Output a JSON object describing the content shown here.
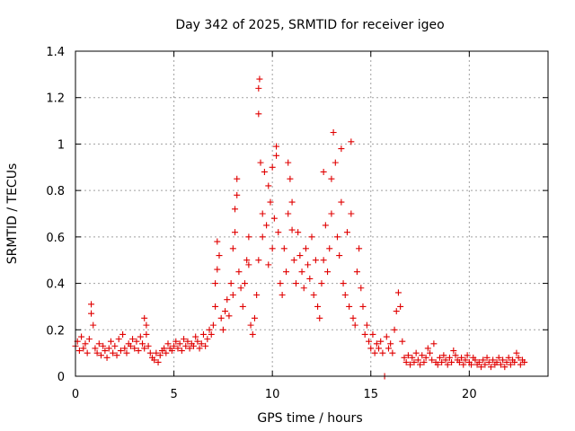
{
  "chart_data": {
    "type": "scatter",
    "title": "Day 342 of 2025, SRMTID for receiver igeo",
    "xlabel": "GPS time / hours",
    "ylabel": "SRMTID / TECUs",
    "xlim": [
      0,
      24
    ],
    "ylim": [
      0,
      1.4
    ],
    "x_ticks": [
      0,
      5,
      10,
      15,
      20
    ],
    "x_tick_labels": [
      "0",
      "5",
      "10",
      "15",
      "20"
    ],
    "y_ticks": [
      0,
      0.2,
      0.4,
      0.6,
      0.8,
      1.0,
      1.2,
      1.4
    ],
    "y_tick_labels": [
      "0",
      "0.2",
      "0.4",
      "0.6",
      "0.8",
      "1",
      "1.2",
      "1.4"
    ],
    "grid": true,
    "marker": "+",
    "color": "#e00000",
    "series": [
      {
        "name": "SRMTID",
        "points": [
          [
            0.0,
            0.13
          ],
          [
            0.1,
            0.15
          ],
          [
            0.2,
            0.11
          ],
          [
            0.3,
            0.17
          ],
          [
            0.4,
            0.12
          ],
          [
            0.5,
            0.14
          ],
          [
            0.6,
            0.1
          ],
          [
            0.7,
            0.16
          ],
          [
            0.8,
            0.31
          ],
          [
            0.8,
            0.27
          ],
          [
            0.9,
            0.22
          ],
          [
            1.0,
            0.12
          ],
          [
            1.1,
            0.1
          ],
          [
            1.2,
            0.14
          ],
          [
            1.3,
            0.09
          ],
          [
            1.4,
            0.13
          ],
          [
            1.5,
            0.11
          ],
          [
            1.6,
            0.08
          ],
          [
            1.7,
            0.12
          ],
          [
            1.8,
            0.15
          ],
          [
            1.9,
            0.1
          ],
          [
            2.0,
            0.13
          ],
          [
            2.1,
            0.09
          ],
          [
            2.2,
            0.16
          ],
          [
            2.3,
            0.11
          ],
          [
            2.4,
            0.18
          ],
          [
            2.5,
            0.12
          ],
          [
            2.6,
            0.1
          ],
          [
            2.7,
            0.14
          ],
          [
            2.8,
            0.13
          ],
          [
            2.9,
            0.16
          ],
          [
            3.0,
            0.12
          ],
          [
            3.1,
            0.15
          ],
          [
            3.2,
            0.11
          ],
          [
            3.3,
            0.17
          ],
          [
            3.4,
            0.14
          ],
          [
            3.5,
            0.12
          ],
          [
            3.6,
            0.18
          ],
          [
            3.7,
            0.13
          ],
          [
            3.5,
            0.25
          ],
          [
            3.6,
            0.22
          ],
          [
            3.8,
            0.1
          ],
          [
            3.9,
            0.08
          ],
          [
            4.0,
            0.07
          ],
          [
            4.1,
            0.1
          ],
          [
            4.2,
            0.06
          ],
          [
            4.3,
            0.09
          ],
          [
            4.4,
            0.11
          ],
          [
            4.5,
            0.12
          ],
          [
            4.6,
            0.1
          ],
          [
            4.7,
            0.14
          ],
          [
            4.8,
            0.12
          ],
          [
            4.9,
            0.11
          ],
          [
            5.0,
            0.13
          ],
          [
            5.1,
            0.15
          ],
          [
            5.2,
            0.12
          ],
          [
            5.3,
            0.14
          ],
          [
            5.4,
            0.11
          ],
          [
            5.5,
            0.16
          ],
          [
            5.6,
            0.13
          ],
          [
            5.7,
            0.15
          ],
          [
            5.8,
            0.12
          ],
          [
            5.9,
            0.14
          ],
          [
            6.0,
            0.13
          ],
          [
            6.1,
            0.17
          ],
          [
            6.2,
            0.15
          ],
          [
            6.3,
            0.12
          ],
          [
            6.4,
            0.14
          ],
          [
            6.5,
            0.18
          ],
          [
            6.6,
            0.13
          ],
          [
            6.7,
            0.16
          ],
          [
            6.8,
            0.2
          ],
          [
            6.9,
            0.18
          ],
          [
            7.0,
            0.22
          ],
          [
            7.1,
            0.3
          ],
          [
            7.1,
            0.4
          ],
          [
            7.2,
            0.46
          ],
          [
            7.2,
            0.58
          ],
          [
            7.3,
            0.52
          ],
          [
            7.4,
            0.25
          ],
          [
            7.5,
            0.2
          ],
          [
            7.6,
            0.28
          ],
          [
            7.7,
            0.33
          ],
          [
            7.8,
            0.26
          ],
          [
            7.9,
            0.4
          ],
          [
            8.0,
            0.35
          ],
          [
            8.0,
            0.55
          ],
          [
            8.1,
            0.62
          ],
          [
            8.1,
            0.72
          ],
          [
            8.2,
            0.85
          ],
          [
            8.2,
            0.78
          ],
          [
            8.3,
            0.45
          ],
          [
            8.4,
            0.38
          ],
          [
            8.5,
            0.3
          ],
          [
            8.6,
            0.4
          ],
          [
            8.7,
            0.5
          ],
          [
            8.8,
            0.6
          ],
          [
            8.8,
            0.48
          ],
          [
            8.9,
            0.22
          ],
          [
            9.0,
            0.18
          ],
          [
            9.1,
            0.25
          ],
          [
            9.2,
            0.35
          ],
          [
            9.3,
            0.5
          ],
          [
            9.3,
            1.13
          ],
          [
            9.3,
            1.24
          ],
          [
            9.35,
            1.28
          ],
          [
            9.4,
            0.92
          ],
          [
            9.5,
            0.7
          ],
          [
            9.5,
            0.6
          ],
          [
            9.6,
            0.88
          ],
          [
            9.7,
            0.65
          ],
          [
            9.8,
            0.48
          ],
          [
            9.8,
            0.82
          ],
          [
            9.9,
            0.75
          ],
          [
            10.0,
            0.55
          ],
          [
            10.0,
            0.9
          ],
          [
            10.1,
            0.68
          ],
          [
            10.2,
            0.99
          ],
          [
            10.2,
            0.95
          ],
          [
            10.3,
            0.62
          ],
          [
            10.4,
            0.4
          ],
          [
            10.5,
            0.35
          ],
          [
            10.6,
            0.55
          ],
          [
            10.7,
            0.45
          ],
          [
            10.8,
            0.7
          ],
          [
            10.8,
            0.92
          ],
          [
            10.9,
            0.85
          ],
          [
            11.0,
            0.63
          ],
          [
            11.0,
            0.75
          ],
          [
            11.1,
            0.5
          ],
          [
            11.2,
            0.4
          ],
          [
            11.3,
            0.62
          ],
          [
            11.4,
            0.52
          ],
          [
            11.5,
            0.45
          ],
          [
            11.6,
            0.38
          ],
          [
            11.7,
            0.55
          ],
          [
            11.8,
            0.48
          ],
          [
            11.9,
            0.42
          ],
          [
            12.0,
            0.6
          ],
          [
            12.1,
            0.35
          ],
          [
            12.2,
            0.5
          ],
          [
            12.3,
            0.3
          ],
          [
            12.4,
            0.25
          ],
          [
            12.5,
            0.4
          ],
          [
            12.6,
            0.5
          ],
          [
            12.6,
            0.88
          ],
          [
            12.7,
            0.65
          ],
          [
            12.8,
            0.45
          ],
          [
            12.9,
            0.55
          ],
          [
            13.0,
            0.7
          ],
          [
            13.0,
            0.85
          ],
          [
            13.1,
            1.05
          ],
          [
            13.2,
            0.92
          ],
          [
            13.3,
            0.6
          ],
          [
            13.4,
            0.52
          ],
          [
            13.5,
            0.75
          ],
          [
            13.5,
            0.98
          ],
          [
            13.6,
            0.4
          ],
          [
            13.7,
            0.35
          ],
          [
            13.8,
            0.62
          ],
          [
            13.9,
            0.3
          ],
          [
            14.0,
            1.01
          ],
          [
            14.0,
            0.7
          ],
          [
            14.1,
            0.25
          ],
          [
            14.2,
            0.22
          ],
          [
            14.3,
            0.45
          ],
          [
            14.4,
            0.55
          ],
          [
            14.5,
            0.38
          ],
          [
            14.6,
            0.3
          ],
          [
            14.7,
            0.18
          ],
          [
            14.8,
            0.22
          ],
          [
            14.9,
            0.15
          ],
          [
            15.0,
            0.12
          ],
          [
            15.1,
            0.18
          ],
          [
            15.2,
            0.1
          ],
          [
            15.3,
            0.14
          ],
          [
            15.4,
            0.12
          ],
          [
            15.5,
            0.15
          ],
          [
            15.6,
            0.1
          ],
          [
            15.8,
            0.17
          ],
          [
            15.9,
            0.12
          ],
          [
            16.0,
            0.14
          ],
          [
            16.1,
            0.1
          ],
          [
            16.2,
            0.2
          ],
          [
            16.3,
            0.28
          ],
          [
            16.4,
            0.36
          ],
          [
            16.5,
            0.3
          ],
          [
            16.6,
            0.15
          ],
          [
            16.7,
            0.08
          ],
          [
            16.8,
            0.06
          ],
          [
            16.9,
            0.09
          ],
          [
            17.0,
            0.05
          ],
          [
            17.1,
            0.08
          ],
          [
            17.2,
            0.06
          ],
          [
            17.3,
            0.1
          ],
          [
            17.4,
            0.07
          ],
          [
            17.5,
            0.05
          ],
          [
            17.6,
            0.09
          ],
          [
            17.7,
            0.06
          ],
          [
            17.8,
            0.08
          ],
          [
            17.9,
            0.12
          ],
          [
            18.0,
            0.1
          ],
          [
            18.1,
            0.07
          ],
          [
            18.2,
            0.14
          ],
          [
            18.3,
            0.06
          ],
          [
            18.4,
            0.05
          ],
          [
            18.5,
            0.08
          ],
          [
            18.6,
            0.06
          ],
          [
            18.7,
            0.09
          ],
          [
            18.8,
            0.07
          ],
          [
            18.9,
            0.05
          ],
          [
            19.0,
            0.08
          ],
          [
            19.1,
            0.06
          ],
          [
            19.2,
            0.11
          ],
          [
            19.3,
            0.09
          ],
          [
            19.4,
            0.07
          ],
          [
            19.5,
            0.06
          ],
          [
            19.6,
            0.08
          ],
          [
            19.7,
            0.05
          ],
          [
            19.8,
            0.07
          ],
          [
            19.9,
            0.09
          ],
          [
            20.0,
            0.06
          ],
          [
            20.1,
            0.05
          ],
          [
            20.2,
            0.08
          ],
          [
            20.3,
            0.07
          ],
          [
            20.4,
            0.05
          ],
          [
            20.5,
            0.06
          ],
          [
            20.6,
            0.04
          ],
          [
            20.7,
            0.07
          ],
          [
            20.8,
            0.05
          ],
          [
            20.9,
            0.08
          ],
          [
            21.0,
            0.06
          ],
          [
            21.1,
            0.04
          ],
          [
            21.2,
            0.07
          ],
          [
            21.3,
            0.05
          ],
          [
            21.4,
            0.06
          ],
          [
            21.5,
            0.08
          ],
          [
            21.6,
            0.05
          ],
          [
            21.7,
            0.07
          ],
          [
            21.8,
            0.04
          ],
          [
            21.9,
            0.06
          ],
          [
            22.0,
            0.08
          ],
          [
            22.1,
            0.05
          ],
          [
            22.2,
            0.07
          ],
          [
            22.3,
            0.06
          ],
          [
            22.4,
            0.1
          ],
          [
            22.5,
            0.08
          ],
          [
            22.6,
            0.05
          ],
          [
            22.7,
            0.07
          ],
          [
            22.8,
            0.06
          ],
          [
            15.7,
            0.0
          ]
        ]
      }
    ]
  }
}
